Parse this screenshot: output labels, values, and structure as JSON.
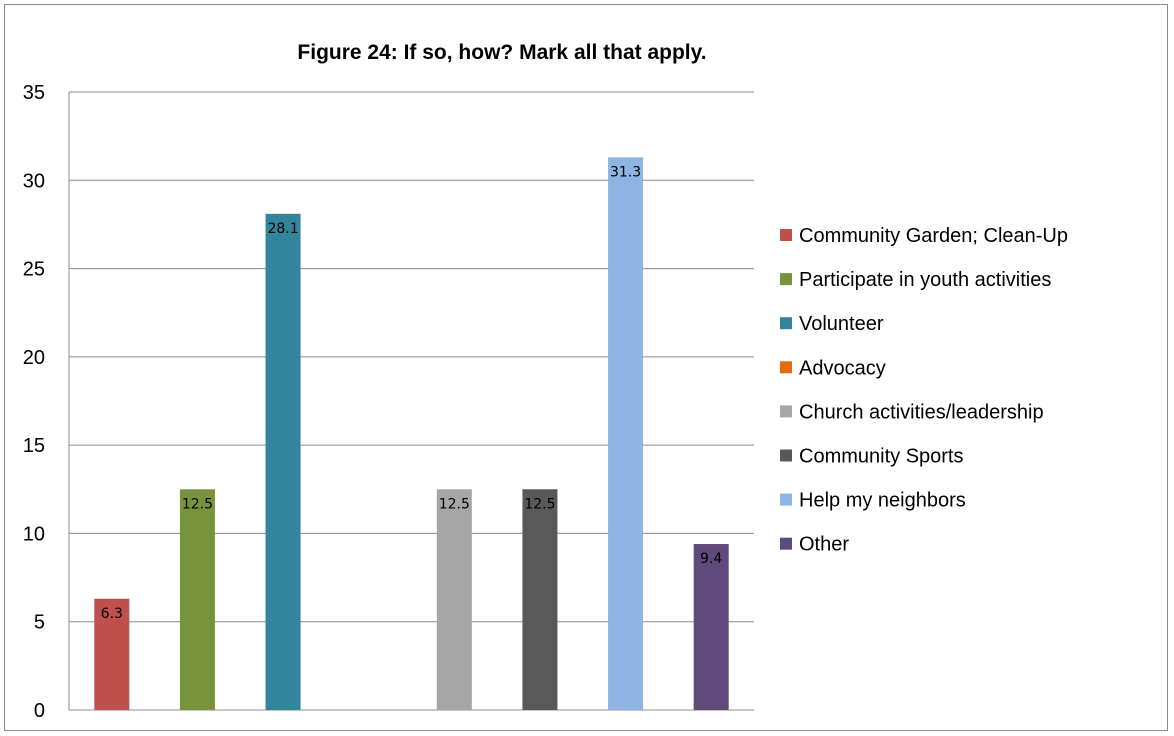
{
  "chart_data": {
    "type": "bar",
    "title": "Figure 24: If so, how? Mark all that apply.",
    "xlabel": "",
    "ylabel": "",
    "ylim": [
      0,
      35
    ],
    "yticks": [
      0,
      5,
      10,
      15,
      20,
      25,
      30,
      35
    ],
    "grid": true,
    "legend_position": "right",
    "categories": [
      "Community Garden; Clean-Up",
      "Participate in youth activities",
      "Volunteer",
      "Advocacy",
      "Church activities/leadership",
      "Community Sports",
      "Help my neighbors",
      "Other"
    ],
    "values": [
      6.3,
      12.5,
      28.1,
      null,
      12.5,
      12.5,
      31.3,
      9.4
    ],
    "data_labels": [
      "6.3",
      "12.5",
      "28.1",
      "",
      "12.5",
      "12.5",
      "31.3",
      "9.4"
    ],
    "colors": [
      "#c0504d",
      "#77933c",
      "#31859c",
      "#e36c09",
      "#a6a6a6",
      "#595959",
      "#8eb4e3",
      "#604a7b"
    ]
  }
}
